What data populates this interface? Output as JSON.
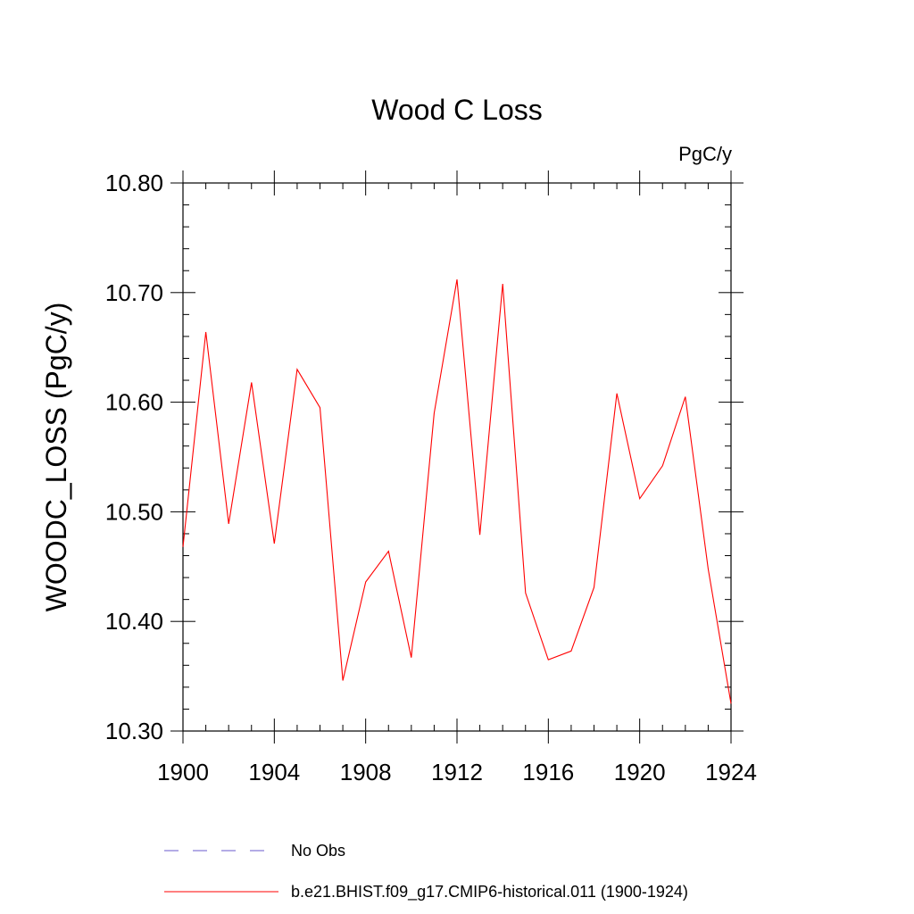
{
  "chart_data": {
    "type": "line",
    "title": "Wood C Loss",
    "units_label": "PgC/y",
    "ylabel": "WOODC_LOSS  (PgC/y)",
    "xlabel": "",
    "xlim": [
      1900,
      1924
    ],
    "ylim": [
      10.3,
      10.8
    ],
    "x_ticks": [
      "1900",
      "1904",
      "1908",
      "1912",
      "1916",
      "1920",
      "1924"
    ],
    "y_ticks": [
      "10.30",
      "10.40",
      "10.50",
      "10.60",
      "10.70",
      "10.80"
    ],
    "grid": false,
    "legend_position": "bottom",
    "series": [
      {
        "name": "b.e21.BHIST.f09_g17.CMIP6-historical.011 (1900-1924)",
        "color": "#ff0000",
        "style": "solid",
        "x": [
          1900,
          1901,
          1902,
          1903,
          1904,
          1905,
          1906,
          1907,
          1908,
          1909,
          1910,
          1911,
          1912,
          1913,
          1914,
          1915,
          1916,
          1917,
          1918,
          1919,
          1920,
          1921,
          1922,
          1923,
          1924
        ],
        "values": [
          10.468,
          10.664,
          10.489,
          10.618,
          10.471,
          10.63,
          10.595,
          10.346,
          10.436,
          10.464,
          10.367,
          10.59,
          10.712,
          10.479,
          10.708,
          10.426,
          10.365,
          10.373,
          10.431,
          10.608,
          10.512,
          10.542,
          10.605,
          10.448,
          10.325
        ]
      }
    ],
    "legend": [
      {
        "label": "No Obs",
        "color": "#6a5acd",
        "style": "dashed"
      },
      {
        "label": "b.e21.BHIST.f09_g17.CMIP6-historical.011 (1900-1924)",
        "color": "#ff0000",
        "style": "solid"
      }
    ]
  }
}
